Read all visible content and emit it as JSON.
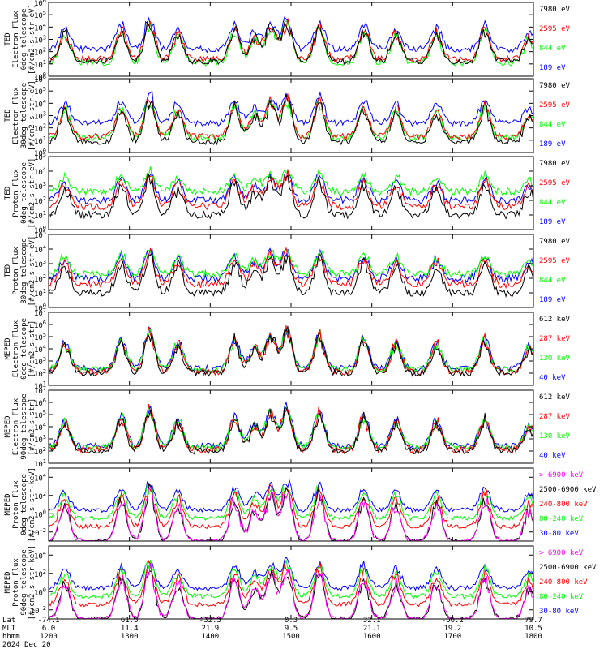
{
  "colors": {
    "black": "#000000",
    "blue": "#0000ff",
    "red": "#ff0000",
    "green": "#00ff00",
    "magenta": "#ff00ff"
  },
  "chart_data": [
    {
      "type": "line",
      "ylabel": [
        "TED",
        "Electron Flux",
        "0deg telescope",
        "[#/cm2-s-str-eV]"
      ],
      "y_scale": "log",
      "ylim": [
        1,
        1000000
      ],
      "ytick_exponents": [
        0,
        1,
        2,
        3,
        4,
        5,
        6
      ],
      "series": [
        {
          "name": "7980 eV",
          "color": "black",
          "level": 1.2
        },
        {
          "name": "2595 eV",
          "color": "red",
          "level": 1.4
        },
        {
          "name": "844 eV",
          "color": "green",
          "level": 1.1
        },
        {
          "name": "189 eV",
          "color": "blue",
          "level": 2.2
        }
      ]
    },
    {
      "type": "line",
      "ylabel": [
        "TED",
        "Electron Flux",
        "30deg telescope",
        "[#/cm2-s-str-eV]"
      ],
      "y_scale": "log",
      "ylim": [
        1,
        1000000
      ],
      "ytick_exponents": [
        0,
        1,
        2,
        3,
        4,
        5,
        6
      ],
      "series": [
        {
          "name": "7980 eV",
          "color": "black",
          "level": 0.9
        },
        {
          "name": "2595 eV",
          "color": "red",
          "level": 1.3
        },
        {
          "name": "844 eV",
          "color": "green",
          "level": 1.2
        },
        {
          "name": "189 eV",
          "color": "blue",
          "level": 2.4
        }
      ]
    },
    {
      "type": "line",
      "ylabel": [
        "TED",
        "Proton Flux",
        "0deg telescope",
        "[#/cm2-s-str-eV]"
      ],
      "y_scale": "log",
      "ylim": [
        1,
        100000
      ],
      "ytick_exponents": [
        0,
        1,
        2,
        3,
        4,
        5
      ],
      "series": [
        {
          "name": "7980 eV",
          "color": "black",
          "level": 1.0
        },
        {
          "name": "2595 eV",
          "color": "red",
          "level": 1.6
        },
        {
          "name": "844 eV",
          "color": "green",
          "level": 2.6
        },
        {
          "name": "189 eV",
          "color": "blue",
          "level": 2.0
        }
      ]
    },
    {
      "type": "line",
      "ylabel": [
        "TED",
        "Proton Flux",
        "30deg telescope",
        "[#/cm2-s-str-eV]"
      ],
      "y_scale": "log",
      "ylim": [
        1,
        100000
      ],
      "ytick_exponents": [
        0,
        1,
        2,
        3,
        4,
        5
      ],
      "series": [
        {
          "name": "7980 eV",
          "color": "black",
          "level": 1.0
        },
        {
          "name": "2595 eV",
          "color": "red",
          "level": 1.6
        },
        {
          "name": "844 eV",
          "color": "green",
          "level": 2.3
        },
        {
          "name": "189 eV",
          "color": "blue",
          "level": 2.0
        }
      ]
    },
    {
      "type": "line",
      "ylabel": [
        "MEPED",
        "Electron Flux",
        "0deg telescope",
        "[#/cm2-s-str]"
      ],
      "y_scale": "log",
      "ylim": [
        10,
        10000000
      ],
      "ytick_exponents": [
        1,
        2,
        3,
        4,
        5,
        6,
        7
      ],
      "series": [
        {
          "name": "612 keV",
          "color": "black",
          "level": 2.0
        },
        {
          "name": "287 keV",
          "color": "red",
          "level": 2.1
        },
        {
          "name": "130 keV",
          "color": "green",
          "level": 2.3
        },
        {
          "name": "40 keV",
          "color": "blue",
          "level": 2.4
        }
      ]
    },
    {
      "type": "line",
      "ylabel": [
        "MEPED",
        "Electron Flux",
        "90deg telescope",
        "[#/cm2-s-str]"
      ],
      "y_scale": "log",
      "ylim": [
        10,
        10000000
      ],
      "ytick_exponents": [
        1,
        2,
        3,
        4,
        5,
        6,
        7
      ],
      "series": [
        {
          "name": "612 keV",
          "color": "black",
          "level": 2.0
        },
        {
          "name": "287 keV",
          "color": "red",
          "level": 2.1
        },
        {
          "name": "130 keV",
          "color": "green",
          "level": 2.3
        },
        {
          "name": "40 keV",
          "color": "blue",
          "level": 2.4
        }
      ]
    },
    {
      "type": "line",
      "ylabel": [
        "MEPED",
        "Proton Flux",
        "0deg telescope",
        "[#/cm2-s-str-keV]"
      ],
      "y_scale": "log",
      "ylim": [
        0.001,
        100000
      ],
      "ytick_exponents": [
        -2,
        0,
        2,
        4
      ],
      "series": [
        {
          "name": "> 6900 keV",
          "color": "magenta",
          "level": -3.0
        },
        {
          "name": "2500-6900 keV",
          "color": "black",
          "level": -3.0
        },
        {
          "name": "240-800 keV",
          "color": "red",
          "level": -1.4
        },
        {
          "name": "80-240 keV",
          "color": "green",
          "level": -0.5
        },
        {
          "name": "30-80 keV",
          "color": "blue",
          "level": 0.4
        }
      ]
    },
    {
      "type": "line",
      "ylabel": [
        "MEPED",
        "Proton Flux",
        "90deg telescope",
        "[#/cm2-s-str-keV]"
      ],
      "y_scale": "log",
      "ylim": [
        0.001,
        100000
      ],
      "ytick_exponents": [
        -2,
        0,
        2,
        4
      ],
      "series": [
        {
          "name": "> 6900 keV",
          "color": "magenta",
          "level": -3.0
        },
        {
          "name": "2500-6900 keV",
          "color": "black",
          "level": -3.0
        },
        {
          "name": "240-800 keV",
          "color": "red",
          "level": -1.4
        },
        {
          "name": "80-240 keV",
          "color": "green",
          "level": -0.5
        },
        {
          "name": "30-80 keV",
          "color": "blue",
          "level": 0.4
        }
      ]
    }
  ],
  "time_axis": {
    "range_hours": [
      12,
      18
    ],
    "row_labels": [
      "Lat",
      "MLT",
      "hhmm",
      "2024 Dec 20"
    ],
    "ticks": [
      {
        "lat": "-74.1",
        "mlt": "6.0",
        "hhmm": "1200"
      },
      {
        "lat": "61.5",
        "mlt": "11.4",
        "hhmm": "1300"
      },
      {
        "lat": "-32.5",
        "mlt": "21.9",
        "hhmm": "1400"
      },
      {
        "lat": "0.3",
        "mlt": "9.5",
        "hhmm": "1500"
      },
      {
        "lat": "32.1",
        "mlt": "21.1",
        "hhmm": "1600"
      },
      {
        "lat": "-66.2",
        "mlt": "19.2",
        "hhmm": "1700"
      },
      {
        "lat": "79.7",
        "mlt": "10.5",
        "hhmm": "1800"
      }
    ]
  },
  "events": [
    {
      "hour": 12.2,
      "strength": 0.7
    },
    {
      "hour": 12.9,
      "strength": 0.8
    },
    {
      "hour": 13.25,
      "strength": 1.0
    },
    {
      "hour": 13.6,
      "strength": 0.7
    },
    {
      "hour": 14.3,
      "strength": 0.8
    },
    {
      "hour": 14.55,
      "strength": 0.6
    },
    {
      "hour": 14.75,
      "strength": 0.9
    },
    {
      "hour": 14.95,
      "strength": 1.0
    },
    {
      "hour": 15.35,
      "strength": 0.9
    },
    {
      "hour": 15.9,
      "strength": 0.8
    },
    {
      "hour": 16.3,
      "strength": 0.7
    },
    {
      "hour": 16.8,
      "strength": 0.7
    },
    {
      "hour": 17.4,
      "strength": 0.8
    },
    {
      "hour": 17.95,
      "strength": 0.6
    }
  ]
}
